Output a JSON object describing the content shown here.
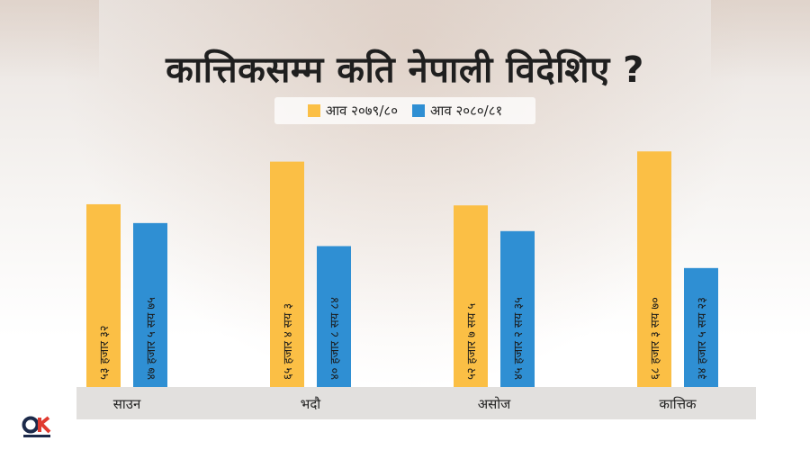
{
  "colors": {
    "series1": "#fbbf45",
    "series2": "#2f8fd3",
    "axis_band": "#e2e0de",
    "logo_red": "#e03a2f",
    "logo_dark": "#1c2a4a"
  },
  "icons": {
    "logo": "onlinekhabar-logo"
  },
  "chart_data": {
    "type": "bar",
    "title": "कात्तिकसम्म कति नेपाली विदेशिए ?",
    "categories": [
      "साउन",
      "भदौ",
      "असोज",
      "कात्तिक"
    ],
    "series": [
      {
        "name": "आव २०७९/८०",
        "values": [
          53032,
          65403,
          52705,
          68370
        ],
        "labels": [
          "५३ हजार ३२",
          "६५ हजार ४ सय ३",
          "५२ हजार ७ सय ५",
          "६८ हजार ३ सय ७०"
        ]
      },
      {
        "name": "आव २०८०/८१",
        "values": [
          47575,
          40884,
          45235,
          34523
        ],
        "labels": [
          "४७ हजार ५ सय ७५",
          "४० हजार ८ सय ८४",
          "४५ हजार २ सय ३५",
          "३४ हजार ५ सय २३"
        ]
      }
    ],
    "ylim": [
      0,
      70000
    ],
    "grid": false,
    "legend": "top-center"
  }
}
